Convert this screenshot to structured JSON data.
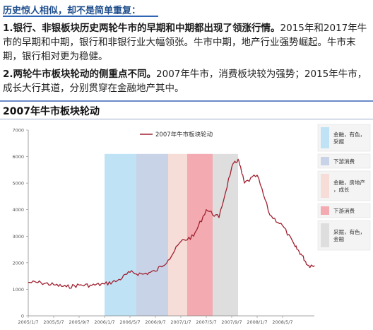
{
  "header": {
    "subtitle": "历史惊人相似，却不是简单重复：",
    "p1_lead": "1.银行、非银板块历史两轮牛市的早期和中期都出现了领涨行情。",
    "p1_rest": "2015年和2017年牛市的早期和中期，银行和非银行业大幅领张。牛市中期，地产行业强势崛起。牛市末期，银行相对更为稳健。",
    "p2_lead": "2.两轮牛市板块轮动的侧重点不同。",
    "p2_rest": "2007年牛市，消费板块较为强势；2015年牛市，成长大行其道，分别贯穿在金融地产其中。"
  },
  "chart_title": "2007年牛市板块轮动",
  "colors": {
    "series": "#a02030",
    "band1": "#bfe3f5",
    "band2": "#c9d3e8",
    "band3": "#f6ddd8",
    "band4": "#f3aab1",
    "band5": "#dedede"
  },
  "chart_data": {
    "type": "line",
    "series": [
      {
        "name": "2007年牛市板块轮动",
        "x": [
          "2005/1/7",
          "2005/3/7",
          "2005/5/7",
          "2005/7/7",
          "2005/9/7",
          "2005/11/7",
          "2006/1/7",
          "2006/3/7",
          "2006/5/7",
          "2006/7/7",
          "2006/9/7",
          "2006/11/7",
          "2007/1/7",
          "2007/3/7",
          "2007/5/7",
          "2007/7/7",
          "2007/9/7",
          "2007/10/7",
          "2007/11/7",
          "2008/1/7",
          "2008/3/7",
          "2008/5/7",
          "2008/7/7",
          "2008/8/7",
          "2008/9/7",
          "2008/10/7"
        ],
        "values": [
          1260,
          1250,
          1170,
          1090,
          1160,
          1150,
          1200,
          1320,
          1640,
          1570,
          1680,
          2100,
          2800,
          3000,
          4000,
          3700,
          5600,
          5900,
          5000,
          5300,
          3800,
          3400,
          2600,
          2300,
          1900,
          1900
        ]
      }
    ],
    "ylim": [
      0,
      7000
    ],
    "yticks": [
      0,
      1000,
      2000,
      3000,
      4000,
      5000,
      6000,
      7000
    ],
    "xtick_labels": [
      "2005/1/7",
      "2005/5/7",
      "2005/9/7",
      "2006/1/7",
      "2006/5/7",
      "2006/9/7",
      "2007/1/7",
      "2007/5/7",
      "2007/9/7",
      "2008/1/7",
      "2008/5/7"
    ],
    "x_start": "2005/1/7",
    "x_end": "2008/10/7",
    "bands": [
      {
        "start": "2006/1/7",
        "end": "2006/6/7",
        "color_key": "band1",
        "label": "金融，有色，采掘"
      },
      {
        "start": "2006/6/7",
        "end": "2006/11/7",
        "color_key": "band2",
        "label": "下游消费"
      },
      {
        "start": "2006/11/7",
        "end": "2007/2/7",
        "color_key": "band3",
        "label": "金融，房地产，成长"
      },
      {
        "start": "2007/2/7",
        "end": "2007/6/7",
        "color_key": "band4",
        "label": "下游消费"
      },
      {
        "start": "2007/6/7",
        "end": "2007/10/7",
        "color_key": "band5",
        "label": "采掘，有色，金融"
      }
    ],
    "grid": false,
    "legend": "top-center"
  }
}
